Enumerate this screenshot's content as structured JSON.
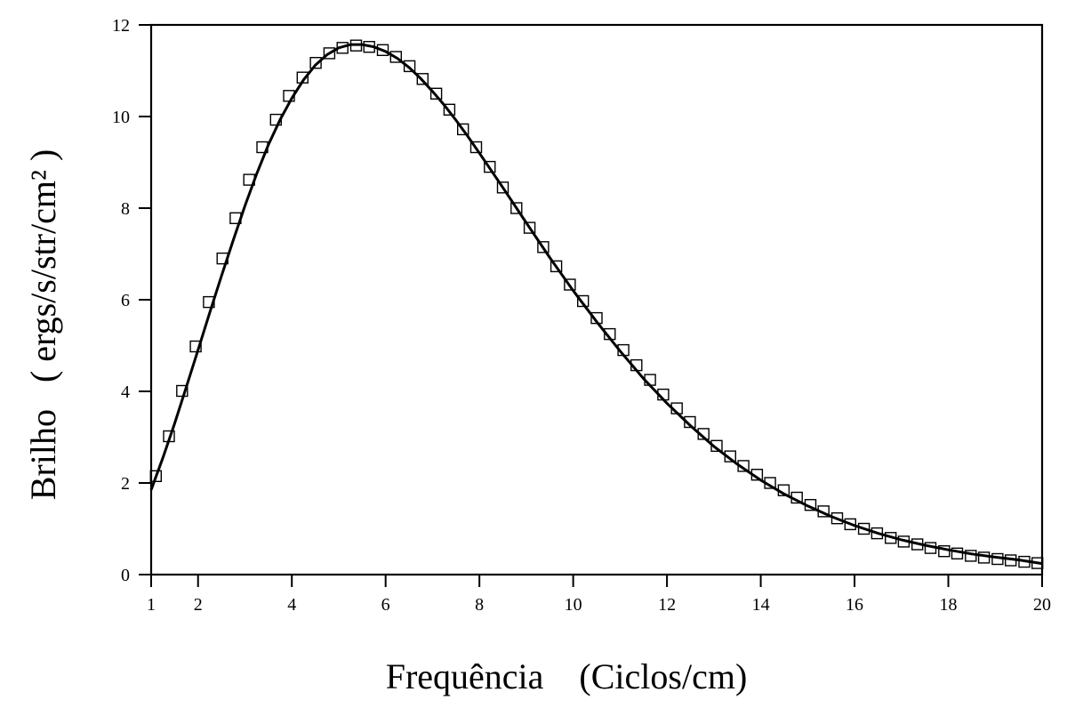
{
  "chart_data": {
    "type": "scatter",
    "title": "",
    "xlabel": "Frequência    (Ciclos/cm)",
    "ylabel": "Brilho   ( ergs/s/str/cm² )",
    "xlim": [
      1,
      20
    ],
    "ylim": [
      0,
      12
    ],
    "x_ticks": [
      1,
      2,
      4,
      6,
      8,
      10,
      12,
      14,
      16,
      18,
      20
    ],
    "y_ticks": [
      0,
      2,
      4,
      6,
      8,
      10,
      12
    ],
    "grid": false,
    "legend": "none",
    "series": [
      {
        "kind": "markers",
        "marker": "open-square",
        "x": [
          1.1,
          1.38,
          1.66,
          1.95,
          2.23,
          2.52,
          2.8,
          3.09,
          3.37,
          3.66,
          3.94,
          4.23,
          4.51,
          4.8,
          5.08,
          5.37,
          5.65,
          5.94,
          6.22,
          6.51,
          6.79,
          7.08,
          7.36,
          7.65,
          7.93,
          8.22,
          8.5,
          8.79,
          9.07,
          9.36,
          9.64,
          9.93,
          10.21,
          10.5,
          10.78,
          11.07,
          11.35,
          11.64,
          11.92,
          12.21,
          12.49,
          12.78,
          13.06,
          13.35,
          13.63,
          13.92,
          14.2,
          14.49,
          14.77,
          15.06,
          15.34,
          15.63,
          15.91,
          16.2,
          16.48,
          16.77,
          17.05,
          17.34,
          17.62,
          17.91,
          18.19,
          18.48,
          18.76,
          19.05,
          19.33,
          19.62,
          19.9
        ],
        "y": [
          2.15,
          3.02,
          4.01,
          4.98,
          5.95,
          6.9,
          7.78,
          8.62,
          9.33,
          9.93,
          10.45,
          10.85,
          11.17,
          11.38,
          11.5,
          11.55,
          11.52,
          11.45,
          11.3,
          11.1,
          10.82,
          10.5,
          10.15,
          9.72,
          9.33,
          8.9,
          8.45,
          8.0,
          7.57,
          7.15,
          6.73,
          6.33,
          5.97,
          5.6,
          5.25,
          4.9,
          4.57,
          4.25,
          3.93,
          3.63,
          3.33,
          3.07,
          2.81,
          2.58,
          2.37,
          2.18,
          2.0,
          1.84,
          1.68,
          1.52,
          1.38,
          1.23,
          1.1,
          1.0,
          0.9,
          0.8,
          0.72,
          0.66,
          0.58,
          0.51,
          0.46,
          0.41,
          0.37,
          0.34,
          0.31,
          0.28,
          0.25
        ]
      },
      {
        "kind": "line",
        "x": [
          1.0,
          1.25,
          1.5,
          1.75,
          2.0,
          2.25,
          2.5,
          2.75,
          3.0,
          3.25,
          3.5,
          3.75,
          4.0,
          4.25,
          4.5,
          4.75,
          5.0,
          5.25,
          5.5,
          5.75,
          6.0,
          6.25,
          6.5,
          6.75,
          7.0,
          7.25,
          7.5,
          7.75,
          8.0,
          8.5,
          9.0,
          9.5,
          10.0,
          10.5,
          11.0,
          11.5,
          12.0,
          12.5,
          13.0,
          13.5,
          14.0,
          14.5,
          15.0,
          15.5,
          16.0,
          16.5,
          17.0,
          17.5,
          18.0,
          18.5,
          19.0,
          19.5,
          20.0
        ],
        "y": [
          1.85,
          2.55,
          3.3,
          4.1,
          4.9,
          5.72,
          6.52,
          7.3,
          8.05,
          8.75,
          9.38,
          9.93,
          10.4,
          10.8,
          11.12,
          11.35,
          11.5,
          11.57,
          11.57,
          11.52,
          11.42,
          11.27,
          11.07,
          10.83,
          10.55,
          10.25,
          9.92,
          9.57,
          9.2,
          8.45,
          7.68,
          6.92,
          6.2,
          5.52,
          4.88,
          4.28,
          3.74,
          3.25,
          2.8,
          2.41,
          2.06,
          1.76,
          1.5,
          1.27,
          1.07,
          0.9,
          0.76,
          0.64,
          0.54,
          0.45,
          0.38,
          0.32,
          0.24
        ]
      }
    ]
  }
}
